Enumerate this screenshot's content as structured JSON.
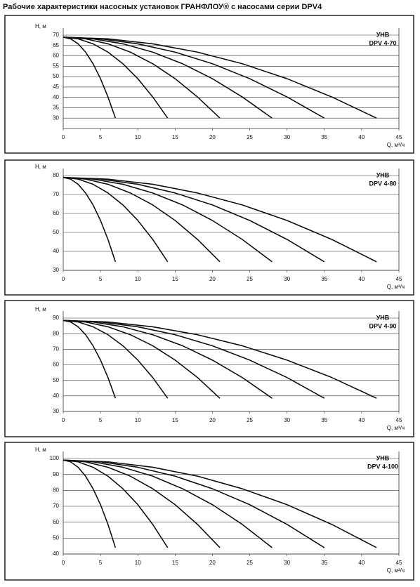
{
  "title": "Рабочие характеристики насосных установок  ГРАНФЛОУ® с насосами серии DPV4",
  "chart_data": [
    {
      "type": "line",
      "title": "УНВ",
      "subtitle": "DPV 4-70",
      "xlabel": "Q, м³/ч",
      "ylabel": "H, м",
      "color": "#111",
      "xlim": [
        0,
        45
      ],
      "xticks": [
        0,
        5,
        10,
        15,
        20,
        25,
        30,
        35,
        40,
        45
      ],
      "ylim": [
        25,
        70
      ],
      "yticks": [
        30,
        35,
        40,
        45,
        50,
        55,
        60,
        65,
        70
      ],
      "grid": true,
      "series": [
        {
          "x": [
            0,
            1,
            2,
            3,
            4,
            5,
            6,
            7
          ],
          "values": [
            69,
            68.2,
            65.8,
            61.8,
            56.2,
            49,
            40.2,
            30
          ]
        },
        {
          "x": [
            0,
            2,
            4,
            6,
            8,
            10,
            12,
            14
          ],
          "values": [
            69,
            68.2,
            65.8,
            61.8,
            56.2,
            49,
            40.2,
            30
          ]
        },
        {
          "x": [
            0,
            3,
            6,
            9,
            12,
            15,
            18,
            21
          ],
          "values": [
            69,
            68.2,
            65.8,
            61.8,
            56.2,
            49,
            40.2,
            30
          ]
        },
        {
          "x": [
            0,
            4,
            8,
            12,
            16,
            20,
            24,
            28
          ],
          "values": [
            69,
            68.2,
            65.8,
            61.8,
            56.2,
            49,
            40.2,
            30
          ]
        },
        {
          "x": [
            0,
            5,
            10,
            15,
            20,
            25,
            30,
            35
          ],
          "values": [
            69,
            68.2,
            65.8,
            61.8,
            56.2,
            49,
            40.2,
            30
          ]
        },
        {
          "x": [
            0,
            6,
            12,
            18,
            24,
            30,
            36,
            42
          ],
          "values": [
            69,
            68.2,
            65.8,
            61.8,
            56.2,
            49,
            40.2,
            30
          ]
        }
      ]
    },
    {
      "type": "line",
      "title": "УНВ",
      "subtitle": "DPV 4-80",
      "xlabel": "Q, м³/ч",
      "ylabel": "H, м",
      "color": "#111",
      "xlim": [
        0,
        45
      ],
      "xticks": [
        0,
        5,
        10,
        15,
        20,
        25,
        30,
        35,
        40,
        45
      ],
      "ylim": [
        30,
        80
      ],
      "yticks": [
        30,
        40,
        50,
        60,
        70,
        80
      ],
      "grid": true,
      "series": [
        {
          "x": [
            0,
            1,
            2,
            3,
            4,
            5,
            6,
            7
          ],
          "values": [
            79,
            78.1,
            75.4,
            70.8,
            64.5,
            56.3,
            46.3,
            34.5
          ]
        },
        {
          "x": [
            0,
            2,
            4,
            6,
            8,
            10,
            12,
            14
          ],
          "values": [
            79,
            78.1,
            75.4,
            70.8,
            64.5,
            56.3,
            46.3,
            34.5
          ]
        },
        {
          "x": [
            0,
            3,
            6,
            9,
            12,
            15,
            18,
            21
          ],
          "values": [
            79,
            78.1,
            75.4,
            70.8,
            64.5,
            56.3,
            46.3,
            34.5
          ]
        },
        {
          "x": [
            0,
            4,
            8,
            12,
            16,
            20,
            24,
            28
          ],
          "values": [
            79,
            78.1,
            75.4,
            70.8,
            64.5,
            56.3,
            46.3,
            34.5
          ]
        },
        {
          "x": [
            0,
            5,
            10,
            15,
            20,
            25,
            30,
            35
          ],
          "values": [
            79,
            78.1,
            75.4,
            70.8,
            64.5,
            56.3,
            46.3,
            34.5
          ]
        },
        {
          "x": [
            0,
            6,
            12,
            18,
            24,
            30,
            36,
            42
          ],
          "values": [
            79,
            78.1,
            75.4,
            70.8,
            64.5,
            56.3,
            46.3,
            34.5
          ]
        }
      ]
    },
    {
      "type": "line",
      "title": "УНВ",
      "subtitle": "DPV 4-90",
      "xlabel": "Q, м³/ч",
      "ylabel": "H, м",
      "color": "#111",
      "xlim": [
        0,
        45
      ],
      "xticks": [
        0,
        5,
        10,
        15,
        20,
        25,
        30,
        35,
        40,
        45
      ],
      "ylim": [
        30,
        90
      ],
      "yticks": [
        30,
        40,
        50,
        60,
        70,
        80,
        90
      ],
      "grid": true,
      "series": [
        {
          "x": [
            0,
            1,
            2,
            3,
            4,
            5,
            6,
            7
          ],
          "values": [
            88.5,
            87.5,
            84.4,
            79.3,
            72.2,
            63,
            51.8,
            38.5
          ]
        },
        {
          "x": [
            0,
            2,
            4,
            6,
            8,
            10,
            12,
            14
          ],
          "values": [
            88.5,
            87.5,
            84.4,
            79.3,
            72.2,
            63,
            51.8,
            38.5
          ]
        },
        {
          "x": [
            0,
            3,
            6,
            9,
            12,
            15,
            18,
            21
          ],
          "values": [
            88.5,
            87.5,
            84.4,
            79.3,
            72.2,
            63,
            51.8,
            38.5
          ]
        },
        {
          "x": [
            0,
            4,
            8,
            12,
            16,
            20,
            24,
            28
          ],
          "values": [
            88.5,
            87.5,
            84.4,
            79.3,
            72.2,
            63,
            51.8,
            38.5
          ]
        },
        {
          "x": [
            0,
            5,
            10,
            15,
            20,
            25,
            30,
            35
          ],
          "values": [
            88.5,
            87.5,
            84.4,
            79.3,
            72.2,
            63,
            51.8,
            38.5
          ]
        },
        {
          "x": [
            0,
            6,
            12,
            18,
            24,
            30,
            36,
            42
          ],
          "values": [
            88.5,
            87.5,
            84.4,
            79.3,
            72.2,
            63,
            51.8,
            38.5
          ]
        }
      ]
    },
    {
      "type": "line",
      "title": "УНВ",
      "subtitle": "DPV 4-100",
      "xlabel": "Q, м³/ч",
      "ylabel": "H, м",
      "color": "#111",
      "xlim": [
        0,
        45
      ],
      "xticks": [
        0,
        5,
        10,
        15,
        20,
        25,
        30,
        35,
        40,
        45
      ],
      "ylim": [
        40,
        100
      ],
      "yticks": [
        40,
        50,
        60,
        70,
        80,
        90,
        100
      ],
      "grid": true,
      "series": [
        {
          "x": [
            0,
            1,
            2,
            3,
            4,
            5,
            6,
            7
          ],
          "values": [
            99,
            97.9,
            94.5,
            88.9,
            81,
            71,
            58.6,
            44
          ]
        },
        {
          "x": [
            0,
            2,
            4,
            6,
            8,
            10,
            12,
            14
          ],
          "values": [
            99,
            97.9,
            94.5,
            88.9,
            81,
            71,
            58.6,
            44
          ]
        },
        {
          "x": [
            0,
            3,
            6,
            9,
            12,
            15,
            18,
            21
          ],
          "values": [
            99,
            97.9,
            94.5,
            88.9,
            81,
            71,
            58.6,
            44
          ]
        },
        {
          "x": [
            0,
            4,
            8,
            12,
            16,
            20,
            24,
            28
          ],
          "values": [
            99,
            97.9,
            94.5,
            88.9,
            81,
            71,
            58.6,
            44
          ]
        },
        {
          "x": [
            0,
            5,
            10,
            15,
            20,
            25,
            30,
            35
          ],
          "values": [
            99,
            97.9,
            94.5,
            88.9,
            81,
            71,
            58.6,
            44
          ]
        },
        {
          "x": [
            0,
            6,
            12,
            18,
            24,
            30,
            36,
            42
          ],
          "values": [
            99,
            97.9,
            94.5,
            88.9,
            81,
            71,
            58.6,
            44
          ]
        }
      ]
    }
  ]
}
